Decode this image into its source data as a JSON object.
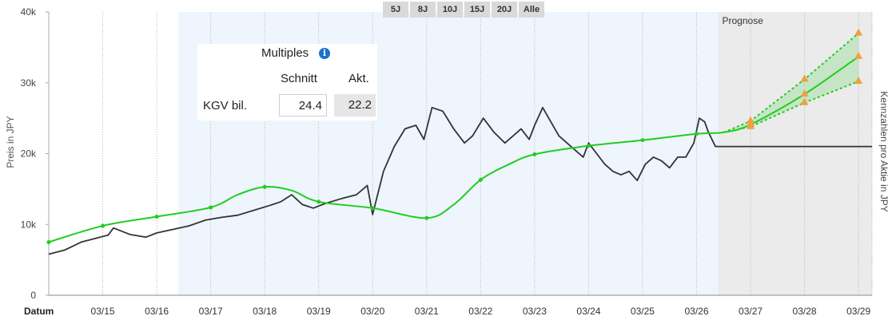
{
  "range_tabs": [
    "5J",
    "8J",
    "10J",
    "15J",
    "20J",
    "Alle"
  ],
  "multiples": {
    "title": "Multiples",
    "col_avg": "Schnitt",
    "col_current": "Akt.",
    "row_label": "KGV bil.",
    "avg_value": "24.4",
    "current_value": "22.2"
  },
  "forecast_label": "Prognose",
  "colors": {
    "price": "#333333",
    "earnings": "#22cc22",
    "forecast_marker": "#f0a040",
    "shade": "#eef5fd",
    "forecast_bg": "#ebebeb"
  },
  "chart_data": {
    "type": "line",
    "x_axis_first_label": "Datum",
    "x_tick_labels": [
      "03/15",
      "03/16",
      "03/17",
      "03/18",
      "03/19",
      "03/20",
      "03/21",
      "03/22",
      "03/23",
      "03/24",
      "03/25",
      "03/26",
      "03/27",
      "03/28",
      "03/29"
    ],
    "y_tick_labels": [
      "0",
      "10k",
      "20k",
      "30k",
      "40k"
    ],
    "ylabel": "Preis in JPY",
    "ylabel_right": "Kennzahlen pro Aktie in JPY",
    "ylim": [
      0,
      40000
    ],
    "xlim": [
      2014.0,
      2029.25
    ],
    "shaded_region": [
      2016.4,
      2026.4
    ],
    "forecast_start": 2026.4,
    "grid": "vertical dotted",
    "series": [
      {
        "role": "price",
        "points": [
          [
            2014.0,
            5800
          ],
          [
            2014.3,
            6400
          ],
          [
            2014.6,
            7500
          ],
          [
            2014.9,
            8100
          ],
          [
            2015.1,
            8500
          ],
          [
            2015.2,
            9500
          ],
          [
            2015.5,
            8600
          ],
          [
            2015.8,
            8200
          ],
          [
            2016.0,
            8800
          ],
          [
            2016.3,
            9300
          ],
          [
            2016.6,
            9800
          ],
          [
            2016.9,
            10600
          ],
          [
            2017.2,
            11000
          ],
          [
            2017.5,
            11300
          ],
          [
            2017.8,
            12000
          ],
          [
            2018.1,
            12700
          ],
          [
            2018.3,
            13200
          ],
          [
            2018.5,
            14200
          ],
          [
            2018.7,
            12800
          ],
          [
            2018.9,
            12300
          ],
          [
            2019.1,
            12900
          ],
          [
            2019.4,
            13600
          ],
          [
            2019.7,
            14200
          ],
          [
            2019.9,
            15500
          ],
          [
            2020.0,
            11400
          ],
          [
            2020.2,
            17500
          ],
          [
            2020.4,
            21000
          ],
          [
            2020.6,
            23500
          ],
          [
            2020.8,
            24000
          ],
          [
            2020.95,
            22000
          ],
          [
            2021.1,
            26500
          ],
          [
            2021.3,
            26000
          ],
          [
            2021.5,
            23500
          ],
          [
            2021.7,
            21500
          ],
          [
            2021.85,
            22500
          ],
          [
            2022.05,
            25000
          ],
          [
            2022.25,
            23000
          ],
          [
            2022.45,
            21500
          ],
          [
            2022.6,
            22500
          ],
          [
            2022.75,
            23500
          ],
          [
            2022.9,
            22000
          ],
          [
            2023.0,
            24000
          ],
          [
            2023.15,
            26500
          ],
          [
            2023.3,
            24500
          ],
          [
            2023.45,
            22500
          ],
          [
            2023.6,
            21500
          ],
          [
            2023.75,
            20500
          ],
          [
            2023.9,
            19500
          ],
          [
            2024.0,
            21500
          ],
          [
            2024.15,
            20000
          ],
          [
            2024.3,
            18500
          ],
          [
            2024.45,
            17500
          ],
          [
            2024.6,
            17000
          ],
          [
            2024.75,
            17500
          ],
          [
            2024.9,
            16200
          ],
          [
            2025.05,
            18500
          ],
          [
            2025.2,
            19500
          ],
          [
            2025.35,
            19000
          ],
          [
            2025.5,
            18000
          ],
          [
            2025.65,
            19500
          ],
          [
            2025.8,
            19500
          ],
          [
            2025.95,
            21500
          ],
          [
            2026.05,
            25000
          ],
          [
            2026.15,
            24500
          ],
          [
            2026.22,
            23000
          ],
          [
            2026.35,
            21000
          ],
          [
            2029.25,
            21000
          ]
        ]
      },
      {
        "role": "earnings",
        "points": [
          [
            2014.0,
            7500
          ],
          [
            2015.0,
            9800
          ],
          [
            2016.0,
            11100
          ],
          [
            2017.0,
            12400
          ],
          [
            2017.5,
            14200
          ],
          [
            2018.0,
            15300
          ],
          [
            2018.5,
            14800
          ],
          [
            2019.0,
            13200
          ],
          [
            2020.0,
            12300
          ],
          [
            2021.0,
            10900
          ],
          [
            2021.5,
            12800
          ],
          [
            2022.0,
            16300
          ],
          [
            2022.5,
            18400
          ],
          [
            2023.0,
            19900
          ],
          [
            2024.0,
            21100
          ],
          [
            2025.0,
            21900
          ],
          [
            2026.0,
            22800
          ],
          [
            2026.5,
            23000
          ],
          [
            2027.0,
            24100
          ],
          [
            2028.0,
            28400
          ],
          [
            2029.0,
            33700
          ]
        ]
      },
      {
        "role": "forecast_high",
        "points": [
          [
            2026.5,
            23000
          ],
          [
            2027.0,
            24600
          ],
          [
            2028.0,
            30500
          ],
          [
            2029.0,
            37000
          ]
        ]
      },
      {
        "role": "forecast_low",
        "points": [
          [
            2026.5,
            23000
          ],
          [
            2027.0,
            23800
          ],
          [
            2028.0,
            27200
          ],
          [
            2029.0,
            30200
          ]
        ]
      }
    ]
  }
}
